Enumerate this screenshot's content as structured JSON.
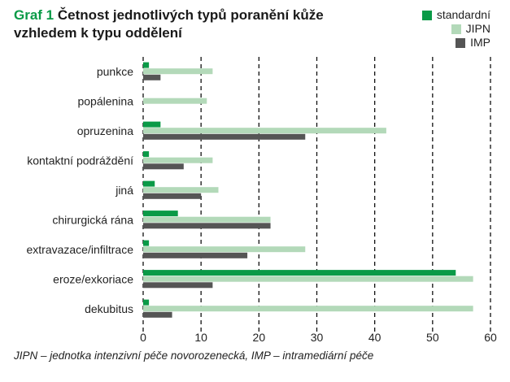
{
  "chart_data": {
    "type": "bar",
    "orientation": "horizontal",
    "title_prefix": "Graf 1",
    "title": "Četnost jednotlivých typů poranění kůže vzhledem k typu oddělení",
    "xlabel": "",
    "ylabel": "",
    "xlim": [
      0,
      60
    ],
    "xticks": [
      0,
      10,
      20,
      30,
      40,
      50,
      60
    ],
    "grid": "vertical dashed",
    "legend_position": "top-right",
    "categories": [
      "punkce",
      "popálenina",
      "opruzenina",
      "kontaktní podráždění",
      "jiná",
      "chirurgická rána",
      "extravazace/infiltrace",
      "eroze/exkoriace",
      "dekubitus"
    ],
    "series": [
      {
        "name": "standardní",
        "color": "#0a9a47",
        "values": [
          1,
          0,
          3,
          1,
          2,
          6,
          1,
          54,
          1
        ]
      },
      {
        "name": "JIPN",
        "color": "#b3d9b9",
        "values": [
          12,
          11,
          42,
          12,
          13,
          22,
          28,
          57,
          57
        ]
      },
      {
        "name": "IMP",
        "color": "#555555",
        "values": [
          3,
          0,
          28,
          7,
          10,
          22,
          18,
          12,
          5
        ]
      }
    ],
    "footnote": "JIPN – jednotka intenzivní péče novorozenecká, IMP – intramediární péče"
  }
}
